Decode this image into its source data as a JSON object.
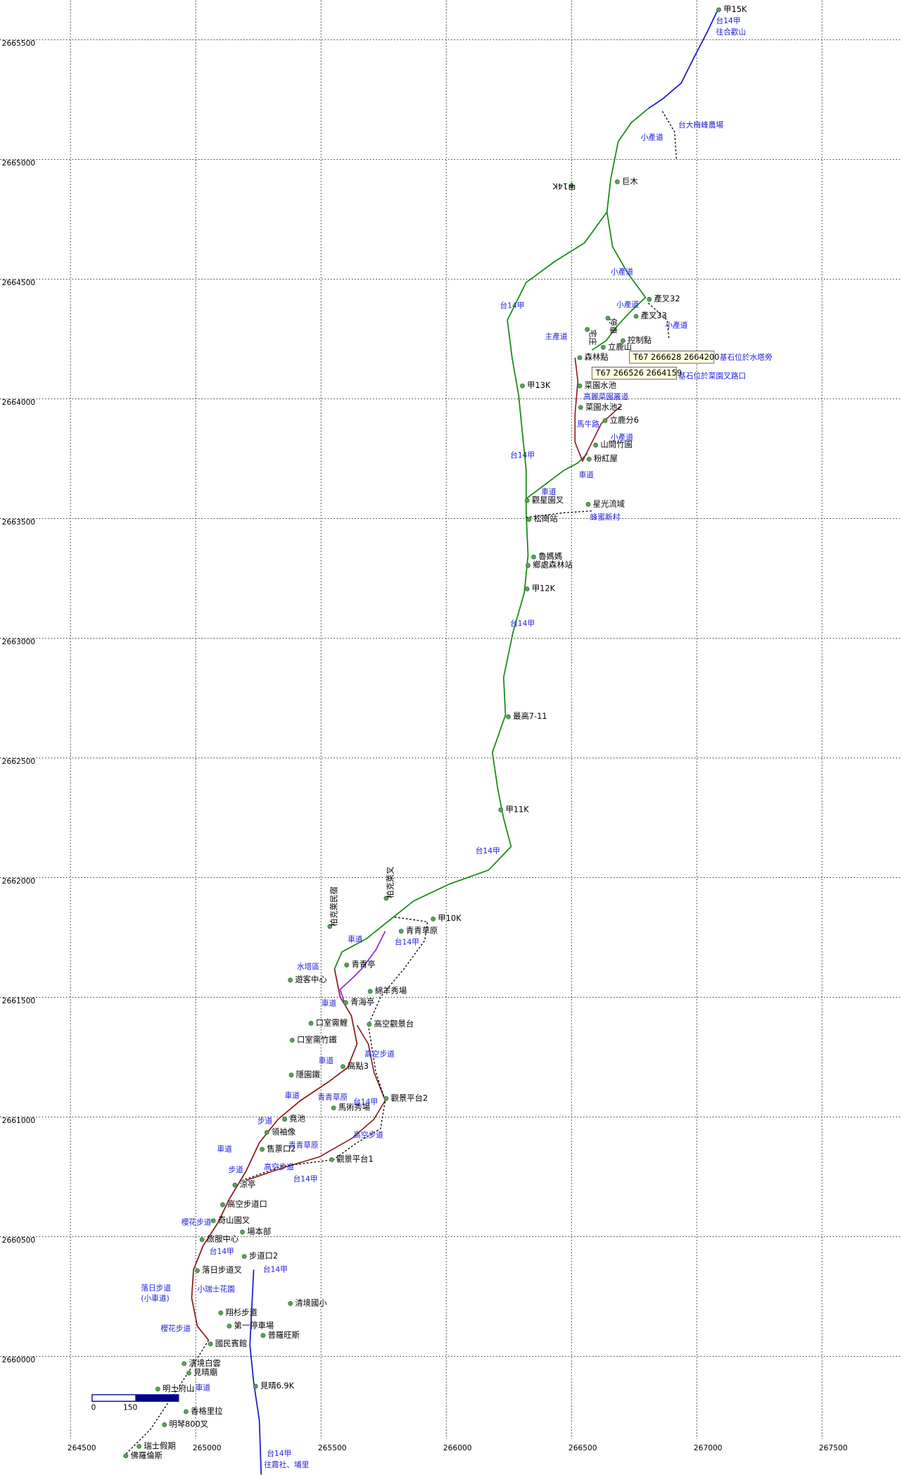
{
  "map": {
    "xticks": [
      264500,
      265000,
      265500,
      266000,
      266500,
      267000,
      267500
    ],
    "yticks": [
      2665500,
      2665000,
      2664500,
      2664000,
      2663500,
      2663000,
      2662500,
      2662000,
      2661500,
      2661000,
      2660500,
      2660000
    ],
    "scale_bar": [
      "0",
      "150"
    ],
    "places": [
      "甲15K",
      "巨木",
      "甲14K",
      "產叉32",
      "產叉33",
      "停車",
      "宅庄",
      "控制點",
      "立鹿山",
      "森林點",
      "甲13K",
      "菜園水池",
      "菜園水池2",
      "立鹿分6",
      "山間竹園",
      "粉紅屋",
      "觀星園叉",
      "星光流域",
      "松崗站",
      "魯媽媽",
      "鄉處森林站",
      "甲12K",
      "最高7-11",
      "甲11K",
      "柏克萊叉",
      "甲10K",
      "柏克萊民宿",
      "青青草原",
      "青青亭",
      "遊客中心",
      "綿羊秀場",
      "青海亭",
      "口室需鯉",
      "高空觀景台",
      "口室需竹鐵",
      "高點3",
      "隱園鐵",
      "觀景平台2",
      "馬術秀場",
      "竟池",
      "領袖像",
      "售票口2",
      "觀景平台1",
      "涼亭",
      "高空步道口",
      "奇山園叉",
      "場本部",
      "旅服中心",
      "步道口2",
      "落日步道叉",
      "清境國小",
      "翔杉步道",
      "第一停車場",
      "普羅旺斯",
      "國民賓館",
      "清境白雲",
      "見晴廟",
      "見晴6.9K",
      "明土府山",
      "香格里拉",
      "明琴800叉",
      "瑞士假期",
      "佛羅倫斯"
    ],
    "road_labels": [
      "台14甲",
      "往合歡山",
      "台大梅峰農場",
      "小產道",
      "小產道",
      "台14甲",
      "小產道",
      "小產道",
      "主產道",
      "基石位於水塔旁",
      "基石位於菜園叉路口",
      "高麗菜園叢道",
      "馬牛路",
      "小產道",
      "台14甲",
      "車道",
      "車道",
      "蜂蜜新村",
      "台14甲",
      "台14甲",
      "車道",
      "台14甲",
      "水塔區",
      "車道",
      "高空步道",
      "車道",
      "車道",
      "台14甲",
      "青青草原",
      "步道",
      "高空步道",
      "車道",
      "青青草原",
      "高空步道",
      "步道",
      "台14甲",
      "櫻花步道",
      "台14甲",
      "台14甲",
      "落日步道",
      "(小車道)",
      "小瑞士花園",
      "櫻花步道",
      "車道",
      "台14甲",
      "往霧社、埔里"
    ],
    "survey_points": [
      "T67  266628  2664200",
      "T67  266526  2664159"
    ]
  }
}
